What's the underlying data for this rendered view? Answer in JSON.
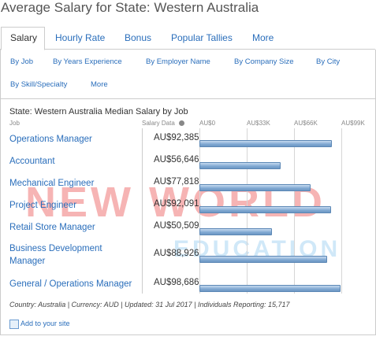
{
  "header": {
    "title": "Average Salary for State: Western Australia"
  },
  "tabs": [
    "Salary",
    "Hourly Rate",
    "Bonus",
    "Popular Tallies",
    "More"
  ],
  "subtabs": [
    "By Job",
    "By Years Experience",
    "By Employer Name",
    "By Company Size",
    "By City",
    "By Skill/Specialty",
    "More"
  ],
  "chart_data": {
    "type": "bar",
    "title": "State: Western Australia Median Salary by Job",
    "category_header": "Job",
    "value_header": "Salary Data",
    "categories": [
      "Operations Manager",
      "Accountant",
      "Mechanical Engineer",
      "Project Engineer",
      "Retail Store Manager",
      "Business Development Manager",
      "General / Operations Manager"
    ],
    "values": [
      92385,
      56646,
      77818,
      92091,
      50509,
      88926,
      98686
    ],
    "value_labels": [
      "AU$92,385",
      "AU$56,646",
      "AU$77,818",
      "AU$92,091",
      "AU$50,509",
      "AU$88,926",
      "AU$98,686"
    ],
    "xlim": [
      0,
      99000
    ],
    "xticks": [
      {
        "value": 0,
        "label": "AU$0"
      },
      {
        "value": 33000,
        "label": "AU$33K"
      },
      {
        "value": 66000,
        "label": "AU$66K"
      },
      {
        "value": 99000,
        "label": "AU$99K"
      }
    ],
    "color": "#7fa8d2",
    "grid": true
  },
  "footer": {
    "note": "Country: Australia | Currency: AUD | Updated: 31 Jul 2017 | Individuals Reporting: 15,717",
    "link": "Add to your site"
  },
  "watermark": {
    "line1": "NEW WORLD",
    "line2": "EDUCATION"
  }
}
